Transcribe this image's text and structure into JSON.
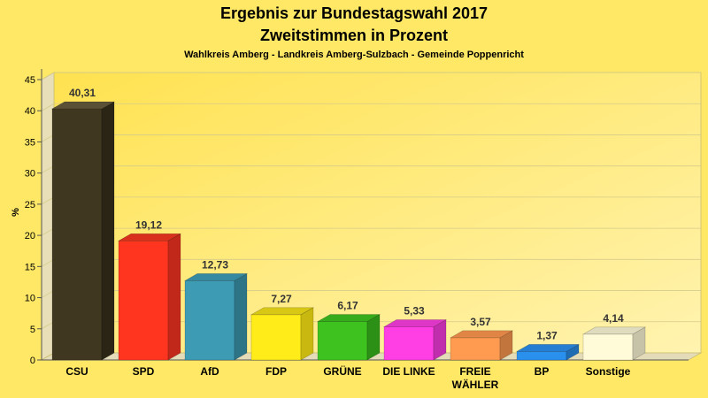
{
  "chart_data": {
    "type": "bar",
    "title": "Ergebnis zur Bundestagswahl 2017",
    "title2": "Zweitstimmen in Prozent",
    "subtitle": "Wahlkreis Amberg - Landkreis Amberg-Sulzbach - Gemeinde Poppenricht",
    "ylabel": "%",
    "xlabel": "",
    "ylim": [
      0,
      45
    ],
    "yticks": [
      0,
      5,
      10,
      15,
      20,
      25,
      30,
      35,
      40,
      45
    ],
    "grid": true,
    "categories": [
      {
        "lines": [
          "CSU"
        ]
      },
      {
        "lines": [
          "SPD"
        ]
      },
      {
        "lines": [
          "AfD"
        ]
      },
      {
        "lines": [
          "FDP"
        ]
      },
      {
        "lines": [
          "GRÜNE"
        ]
      },
      {
        "lines": [
          "DIE LINKE"
        ]
      },
      {
        "lines": [
          "FREIE",
          "WÄHLER"
        ]
      },
      {
        "lines": [
          "BP"
        ]
      },
      {
        "lines": [
          "Sonstige"
        ]
      }
    ],
    "values": [
      40.31,
      19.12,
      12.73,
      7.27,
      6.17,
      5.33,
      3.57,
      1.37,
      4.14
    ],
    "value_labels": [
      "40,31",
      "19,12",
      "12,73",
      "7,27",
      "6,17",
      "5,33",
      "3,57",
      "1,37",
      "4,14"
    ],
    "colors": [
      "#3f3720",
      "#ff3520",
      "#3d9bb4",
      "#ffec18",
      "#3ec21f",
      "#ff3ee4",
      "#ff9b50",
      "#2a90ee",
      "#fffbd9"
    ],
    "side_colors": [
      "#2a2515",
      "#c2281a",
      "#2d7487",
      "#c8b810",
      "#2c9016",
      "#c02ead",
      "#c2753c",
      "#1f6cb3",
      "#c7c3a8"
    ],
    "top_colors": [
      "#5a5035",
      "#d8301d",
      "#358aa1",
      "#d8c815",
      "#36ab1b",
      "#de36c6",
      "#e08545",
      "#257ed2",
      "#dedbbf"
    ]
  }
}
